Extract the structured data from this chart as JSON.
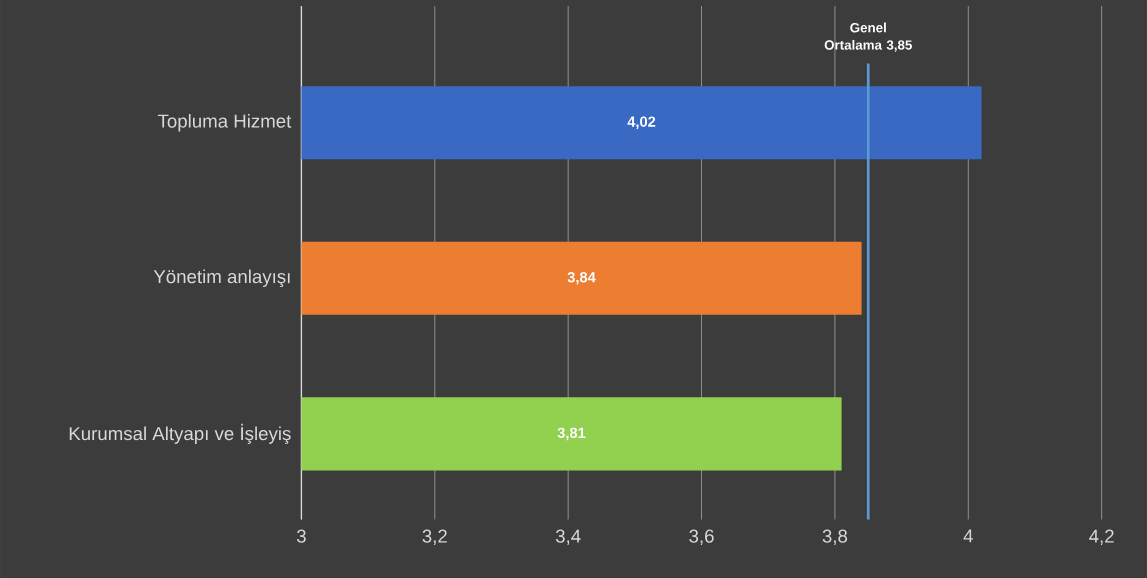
{
  "chart_data": {
    "type": "bar",
    "orientation": "horizontal",
    "categories": [
      "Topluma Hizmet",
      "Yönetim anlayışı",
      "Kurumsal Altyapı ve İşleyiş"
    ],
    "values": [
      4.02,
      3.84,
      3.81
    ],
    "colors": [
      "#3a69c4",
      "#ed7d31",
      "#92d050"
    ],
    "value_labels": [
      "4,02",
      "3,84",
      "3,81"
    ],
    "xlim": [
      3,
      4.2
    ],
    "xticks": [
      3,
      {
        "value": 3.2,
        "label": "3,2"
      },
      {
        "value": 3.4,
        "label": "3,4"
      },
      {
        "value": 3.6,
        "label": "3,6"
      },
      {
        "value": 3.8,
        "label": "3,8"
      },
      4,
      {
        "value": 4.2,
        "label": "4,2"
      }
    ],
    "grid": "x",
    "ref_lines": [
      {
        "axis": "x",
        "value": 3.85,
        "label": "Genel Ortalama 3,85",
        "color": "#5b9bd5"
      }
    ]
  }
}
